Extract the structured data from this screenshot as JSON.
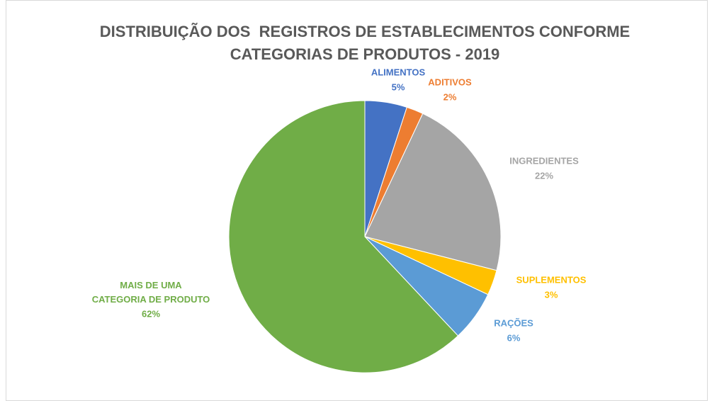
{
  "chart_data": {
    "type": "pie",
    "title": [
      "DISTRIBUIÇÃO DOS  REGISTROS DE ESTABLECIMENTOS CONFORME",
      "CATEGORIAS DE PRODUTOS - 2019"
    ],
    "categories": [
      "ALIMENTOS",
      "ADITIVOS",
      "INGREDIENTES",
      "SUPLEMENTOS",
      "RAÇÕES",
      "MAIS DE UMA CATEGORIA DE PRODUTO"
    ],
    "values": [
      5,
      2,
      22,
      3,
      6,
      62
    ],
    "value_labels": [
      "5%",
      "2%",
      "22%",
      "3%",
      "6%",
      "62%"
    ],
    "colors": [
      "#4472c4",
      "#ed7d31",
      "#a5a5a5",
      "#ffc000",
      "#5b9bd5",
      "#70ad47"
    ]
  }
}
